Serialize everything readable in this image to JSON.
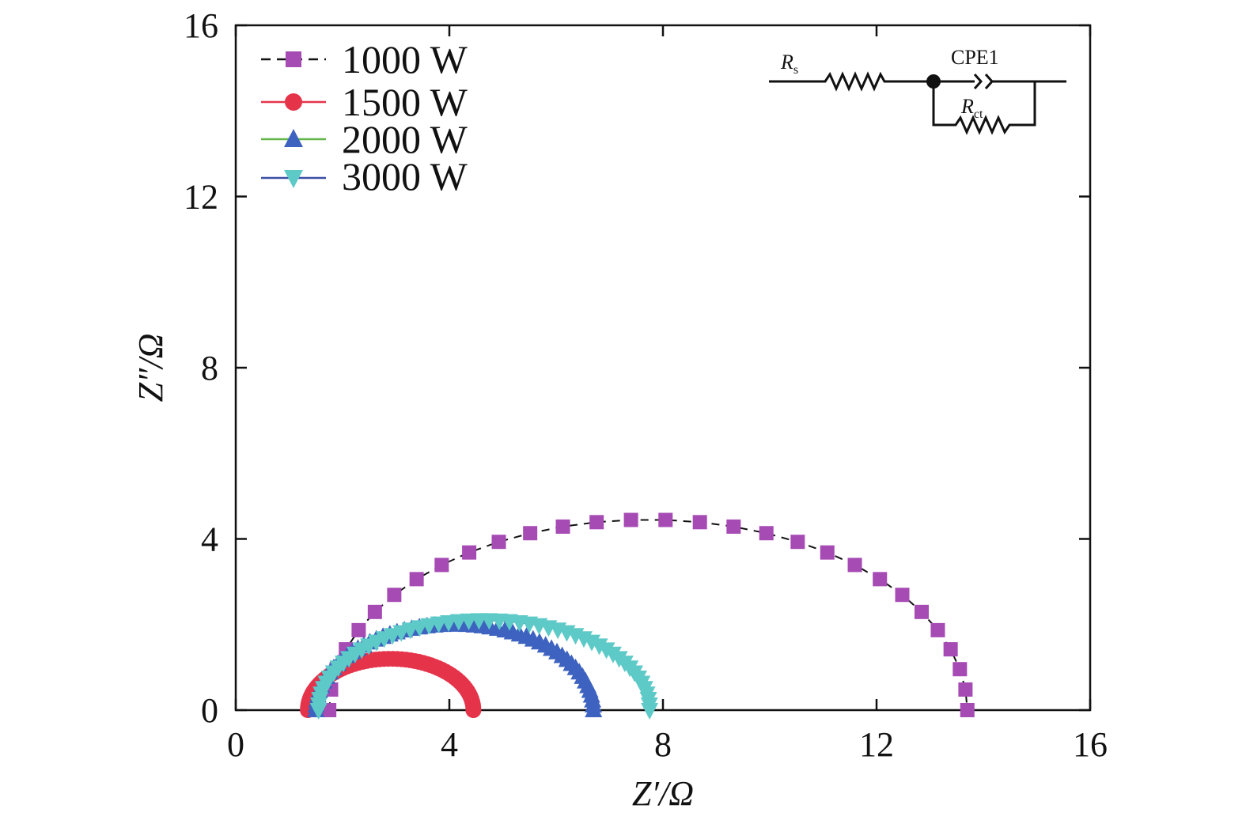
{
  "chart_data": {
    "type": "scatter",
    "title": "",
    "xlabel": "Z′/Ω",
    "ylabel": "Z″/Ω",
    "xlim": [
      0,
      16
    ],
    "ylim": [
      0,
      16
    ],
    "xticks": [
      "0",
      "4",
      "8",
      "12",
      "16"
    ],
    "yticks": [
      "0",
      "4",
      "8",
      "12",
      "16"
    ],
    "legend_position": "top-left",
    "series": [
      {
        "name": "1000 W",
        "marker": "square",
        "marker_color": "#a64ab4",
        "line_color": "#111111",
        "line_style": "dashed",
        "semicircle": {
          "x_start": 1.75,
          "x_end": 13.7,
          "peak": 4.45
        }
      },
      {
        "name": "1500 W",
        "marker": "circle",
        "marker_color": "#e5334a",
        "line_color": "#e5334a",
        "line_style": "solid",
        "semicircle": {
          "x_start": 1.35,
          "x_end": 4.45,
          "peak": 1.2
        }
      },
      {
        "name": "2000 W",
        "marker": "triangle-up",
        "marker_color": "#3d62bf",
        "line_color": "#63b54a",
        "line_style": "solid",
        "semicircle": {
          "x_start": 1.5,
          "x_end": 6.7,
          "peak": 2.0
        }
      },
      {
        "name": "3000 W",
        "marker": "triangle-down",
        "marker_color": "#5ecac8",
        "line_color": "#3a4fa6",
        "line_style": "solid",
        "semicircle": {
          "x_start": 1.55,
          "x_end": 7.75,
          "peak": 2.1
        }
      }
    ],
    "inset_circuit": {
      "resistor_1_label": "R",
      "resistor_1_sub": "s",
      "cpe_label": "CPE1",
      "resistor_2_label": "R",
      "resistor_2_sub": "ct"
    }
  }
}
